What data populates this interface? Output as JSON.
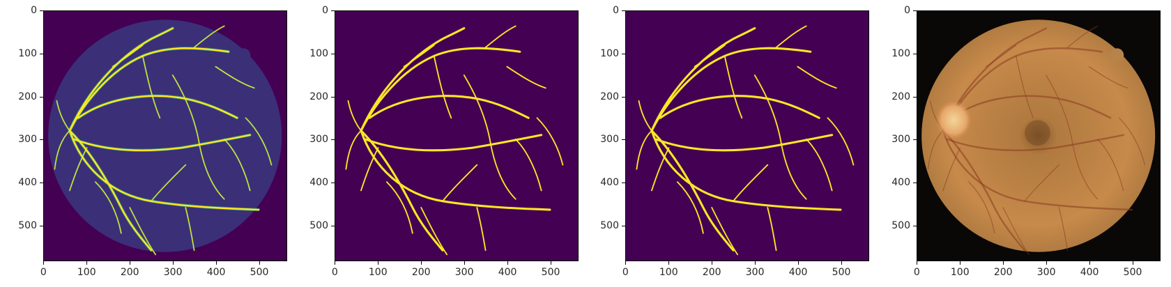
{
  "colors": {
    "viridis_background": "#440154",
    "vessel_yellow": "#fde725",
    "vessel_mid": "#35b779",
    "fundus_dark": "#0a0806",
    "fundus_orange": "#c78a4a",
    "optic_disc": "#f4d59a"
  },
  "panels": [
    {
      "name": "probability-map",
      "kind": "viridis-probability",
      "xticks": [
        "0",
        "100",
        "200",
        "300",
        "400",
        "500"
      ],
      "yticks": [
        "0",
        "100",
        "200",
        "300",
        "400",
        "500"
      ]
    },
    {
      "name": "ground-truth-mask",
      "kind": "binary-mask",
      "xticks": [
        "0",
        "100",
        "200",
        "300",
        "400",
        "500"
      ],
      "yticks": [
        "0",
        "100",
        "200",
        "300",
        "400",
        "500"
      ]
    },
    {
      "name": "predicted-mask",
      "kind": "binary-mask",
      "xticks": [
        "0",
        "100",
        "200",
        "300",
        "400",
        "500"
      ],
      "yticks": [
        "0",
        "100",
        "200",
        "300",
        "400",
        "500"
      ]
    },
    {
      "name": "fundus-photo",
      "kind": "fundus",
      "xticks": [
        "0",
        "100",
        "200",
        "300",
        "400",
        "500"
      ],
      "yticks": [
        "0",
        "100",
        "200",
        "300",
        "400",
        "500"
      ]
    }
  ]
}
